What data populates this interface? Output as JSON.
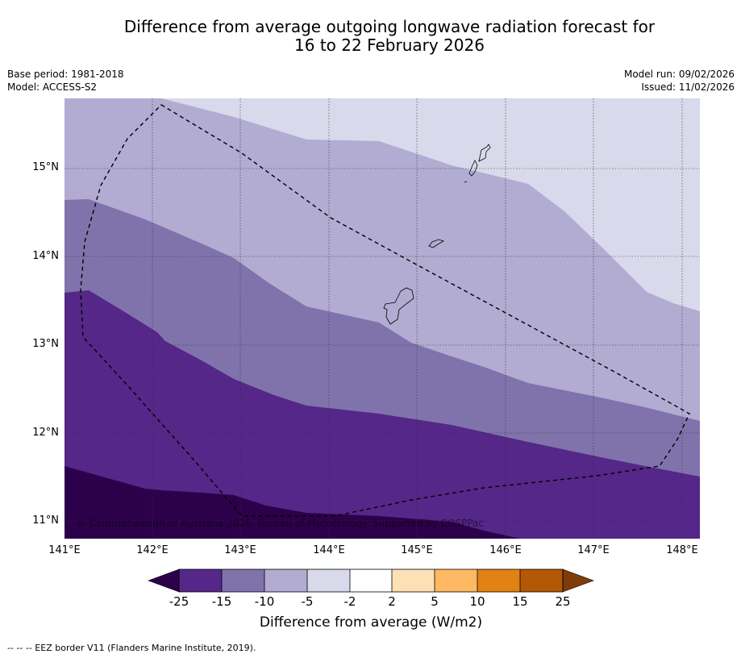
{
  "title": {
    "line1": "Difference from average outgoing longwave radiation forecast for",
    "line2": "16 to 22 February 2026"
  },
  "meta": {
    "base_period": "Base period: 1981-2018",
    "model": "Model: ACCESS-S2",
    "model_run": "Model run: 09/02/2026",
    "issued": "Issued: 11/02/2026"
  },
  "map": {
    "lat_labels": [
      "15°N",
      "14°N",
      "13°N",
      "12°N",
      "11°N"
    ],
    "lon_labels": [
      "141°E",
      "142°E",
      "143°E",
      "144°E",
      "145°E",
      "146°E",
      "147°E",
      "148°E"
    ],
    "copyright": "© Commonwealth of Australia 2026, Bureau of Meteorology. Supported by COSPPac"
  },
  "colorbar": {
    "title": "Difference from average (W/m2)",
    "ticks": [
      "-25",
      "-15",
      "-10",
      "-5",
      "-2",
      "2",
      "5",
      "10",
      "15",
      "25"
    ],
    "colors": {
      "below_min": "#2d004b",
      "neg_25_15": "#542788",
      "neg_15_10": "#8073ac",
      "neg_10_5": "#b2abd2",
      "neg_5_2": "#d8daeb",
      "neg_2_2": "#ffffff",
      "pos_2_5": "#fee0b6",
      "pos_5_10": "#fdb863",
      "pos_10_15": "#e08214",
      "pos_15_25": "#b35806",
      "above_max": "#7f3b08"
    }
  },
  "footnote": "--  --  -- EEZ border V11 (Flanders Marine Institute, 2019)."
}
